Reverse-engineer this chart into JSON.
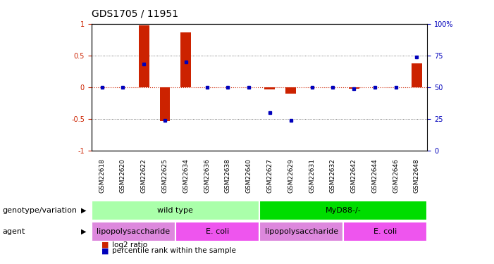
{
  "title": "GDS1705 / 11951",
  "samples": [
    "GSM22618",
    "GSM22620",
    "GSM22622",
    "GSM22625",
    "GSM22634",
    "GSM22636",
    "GSM22638",
    "GSM22640",
    "GSM22627",
    "GSM22629",
    "GSM22631",
    "GSM22632",
    "GSM22642",
    "GSM22644",
    "GSM22646",
    "GSM22648"
  ],
  "log2_ratio": [
    0.0,
    0.0,
    0.97,
    -0.54,
    0.86,
    0.0,
    0.0,
    0.0,
    -0.04,
    -0.1,
    0.0,
    0.0,
    -0.02,
    0.0,
    0.0,
    0.38
  ],
  "percentile": [
    50,
    50,
    68,
    24,
    70,
    50,
    50,
    50,
    30,
    24,
    50,
    50,
    49,
    50,
    50,
    74
  ],
  "genotype_groups": [
    {
      "label": "wild type",
      "start": 0,
      "end": 8,
      "color": "#AAFFAA"
    },
    {
      "label": "MyD88-/-",
      "start": 8,
      "end": 16,
      "color": "#00DD00"
    }
  ],
  "agent_groups": [
    {
      "label": "lipopolysaccharide",
      "start": 0,
      "end": 4,
      "color": "#DD88DD"
    },
    {
      "label": "E. coli",
      "start": 4,
      "end": 8,
      "color": "#EE55EE"
    },
    {
      "label": "lipopolysaccharide",
      "start": 8,
      "end": 12,
      "color": "#DD88DD"
    },
    {
      "label": "E. coli",
      "start": 12,
      "end": 16,
      "color": "#EE55EE"
    }
  ],
  "ylim": [
    -1.0,
    1.0
  ],
  "yticks_left": [
    -1,
    -0.5,
    0,
    0.5,
    1
  ],
  "ytick_labels_left": [
    "-1",
    "-0.5",
    "0",
    "0.5",
    "1"
  ],
  "ytick_labels_right": [
    "0",
    "25",
    "50",
    "75",
    "100%"
  ],
  "bar_color": "#CC2200",
  "dot_color": "#0000BB",
  "hline_color": "#CC2200",
  "grid_color": "#555555",
  "title_fontsize": 10,
  "tick_fontsize": 7,
  "sample_fontsize": 6.5,
  "label_fontsize": 8,
  "legend_fontsize": 7.5,
  "row_label_fontsize": 8,
  "bar_width": 0.5
}
